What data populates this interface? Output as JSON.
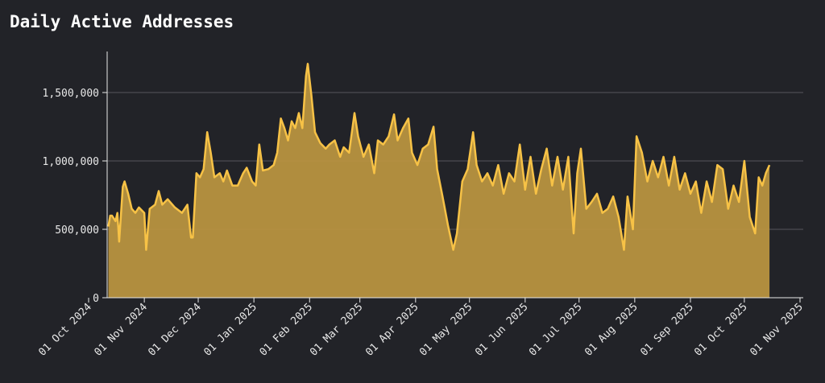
{
  "chart_data": {
    "type": "area",
    "title": "Daily Active Addresses",
    "line_color": "#f7c246",
    "fill_color": "#b8933f",
    "grid": true,
    "xlim": [
      "2024-10-01",
      "2025-11-01"
    ],
    "xticks": [
      {
        "value": "2024-10-01",
        "label": "01 Oct 2024"
      },
      {
        "value": "2024-11-01",
        "label": "01 Nov 2024"
      },
      {
        "value": "2024-12-01",
        "label": "01 Dec 2024"
      },
      {
        "value": "2025-01-01",
        "label": "01 Jan 2025"
      },
      {
        "value": "2025-02-01",
        "label": "01 Feb 2025"
      },
      {
        "value": "2025-03-01",
        "label": "01 Mar 2025"
      },
      {
        "value": "2025-04-01",
        "label": "01 Apr 2025"
      },
      {
        "value": "2025-05-01",
        "label": "01 May 2025"
      },
      {
        "value": "2025-06-01",
        "label": "01 Jun 2025"
      },
      {
        "value": "2025-07-01",
        "label": "01 Jul 2025"
      },
      {
        "value": "2025-08-01",
        "label": "01 Aug 2025"
      },
      {
        "value": "2025-09-01",
        "label": "01 Sep 2025"
      },
      {
        "value": "2025-10-01",
        "label": "01 Oct 2025"
      },
      {
        "value": "2025-11-01",
        "label": "01 Nov 2025"
      }
    ],
    "ylim": [
      0,
      1800000
    ],
    "yticks": [
      0,
      {
        "value": 500000,
        "label": "500,000"
      },
      {
        "value": 1000000,
        "label": "1,000,000"
      },
      {
        "value": 1500000,
        "label": "1,500,000"
      }
    ],
    "x": [
      "2024-10-12",
      "2024-10-13",
      "2024-10-14",
      "2024-10-16",
      "2024-10-17",
      "2024-10-18",
      "2024-10-20",
      "2024-10-21",
      "2024-10-23",
      "2024-10-25",
      "2024-10-27",
      "2024-10-29",
      "2024-11-01",
      "2024-11-02",
      "2024-11-04",
      "2024-11-07",
      "2024-11-09",
      "2024-11-11",
      "2024-11-14",
      "2024-11-18",
      "2024-11-22",
      "2024-11-25",
      "2024-11-27",
      "2024-11-28",
      "2024-11-30",
      "2024-12-02",
      "2024-12-04",
      "2024-12-06",
      "2024-12-08",
      "2024-12-10",
      "2024-12-13",
      "2024-12-15",
      "2024-12-17",
      "2024-12-20",
      "2024-12-23",
      "2024-12-26",
      "2024-12-28",
      "2024-12-31",
      "2025-01-02",
      "2025-01-04",
      "2025-01-06",
      "2025-01-09",
      "2025-01-12",
      "2025-01-14",
      "2025-01-16",
      "2025-01-18",
      "2025-01-20",
      "2025-01-22",
      "2025-01-24",
      "2025-01-26",
      "2025-01-28",
      "2025-01-30",
      "2025-01-31",
      "2025-02-02",
      "2025-02-04",
      "2025-02-07",
      "2025-02-10",
      "2025-02-12",
      "2025-02-15",
      "2025-02-18",
      "2025-02-20",
      "2025-02-23",
      "2025-02-26",
      "2025-02-28",
      "2025-03-03",
      "2025-03-06",
      "2025-03-09",
      "2025-03-11",
      "2025-03-14",
      "2025-03-17",
      "2025-03-20",
      "2025-03-22",
      "2025-03-25",
      "2025-03-28",
      "2025-03-30",
      "2025-04-02",
      "2025-04-05",
      "2025-04-08",
      "2025-04-11",
      "2025-04-13",
      "2025-04-16",
      "2025-04-19",
      "2025-04-22",
      "2025-04-24",
      "2025-04-27",
      "2025-04-30",
      "2025-05-03",
      "2025-05-05",
      "2025-05-08",
      "2025-05-11",
      "2025-05-14",
      "2025-05-17",
      "2025-05-20",
      "2025-05-23",
      "2025-05-26",
      "2025-05-29",
      "2025-06-01",
      "2025-06-04",
      "2025-06-07",
      "2025-06-10",
      "2025-06-13",
      "2025-06-16",
      "2025-06-19",
      "2025-06-22",
      "2025-06-25",
      "2025-06-28",
      "2025-06-30",
      "2025-07-02",
      "2025-07-05",
      "2025-07-08",
      "2025-07-11",
      "2025-07-14",
      "2025-07-17",
      "2025-07-20",
      "2025-07-23",
      "2025-07-26",
      "2025-07-28",
      "2025-07-31",
      "2025-08-02",
      "2025-08-05",
      "2025-08-08",
      "2025-08-11",
      "2025-08-14",
      "2025-08-17",
      "2025-08-20",
      "2025-08-23",
      "2025-08-26",
      "2025-08-29",
      "2025-09-01",
      "2025-09-04",
      "2025-09-07",
      "2025-09-10",
      "2025-09-13",
      "2025-09-16",
      "2025-09-19",
      "2025-09-22",
      "2025-09-25",
      "2025-09-28",
      "2025-10-01",
      "2025-10-04",
      "2025-10-07",
      "2025-10-09",
      "2025-10-11",
      "2025-10-13",
      "2025-10-15"
    ],
    "values": [
      520000,
      600000,
      600000,
      560000,
      620000,
      410000,
      810000,
      850000,
      760000,
      650000,
      620000,
      660000,
      620000,
      350000,
      650000,
      680000,
      780000,
      680000,
      720000,
      660000,
      620000,
      680000,
      440000,
      440000,
      910000,
      880000,
      940000,
      1210000,
      1060000,
      880000,
      910000,
      850000,
      930000,
      820000,
      820000,
      910000,
      950000,
      850000,
      820000,
      1120000,
      930000,
      940000,
      970000,
      1060000,
      1310000,
      1240000,
      1150000,
      1290000,
      1240000,
      1350000,
      1240000,
      1620000,
      1710000,
      1480000,
      1210000,
      1130000,
      1090000,
      1120000,
      1150000,
      1030000,
      1100000,
      1060000,
      1350000,
      1180000,
      1030000,
      1120000,
      910000,
      1150000,
      1120000,
      1180000,
      1340000,
      1150000,
      1240000,
      1310000,
      1060000,
      970000,
      1090000,
      1120000,
      1250000,
      940000,
      740000,
      530000,
      350000,
      470000,
      850000,
      940000,
      1210000,
      970000,
      850000,
      910000,
      820000,
      970000,
      760000,
      910000,
      850000,
      1120000,
      790000,
      1030000,
      760000,
      940000,
      1090000,
      820000,
      1030000,
      790000,
      1030000,
      470000,
      910000,
      1090000,
      650000,
      700000,
      760000,
      620000,
      650000,
      740000,
      590000,
      350000,
      740000,
      500000,
      1180000,
      1060000,
      850000,
      1000000,
      880000,
      1030000,
      820000,
      1030000,
      790000,
      910000,
      760000,
      850000,
      620000,
      850000,
      700000,
      970000,
      940000,
      650000,
      820000,
      700000,
      1000000,
      590000,
      470000,
      880000,
      820000,
      910000,
      970000
    ]
  }
}
